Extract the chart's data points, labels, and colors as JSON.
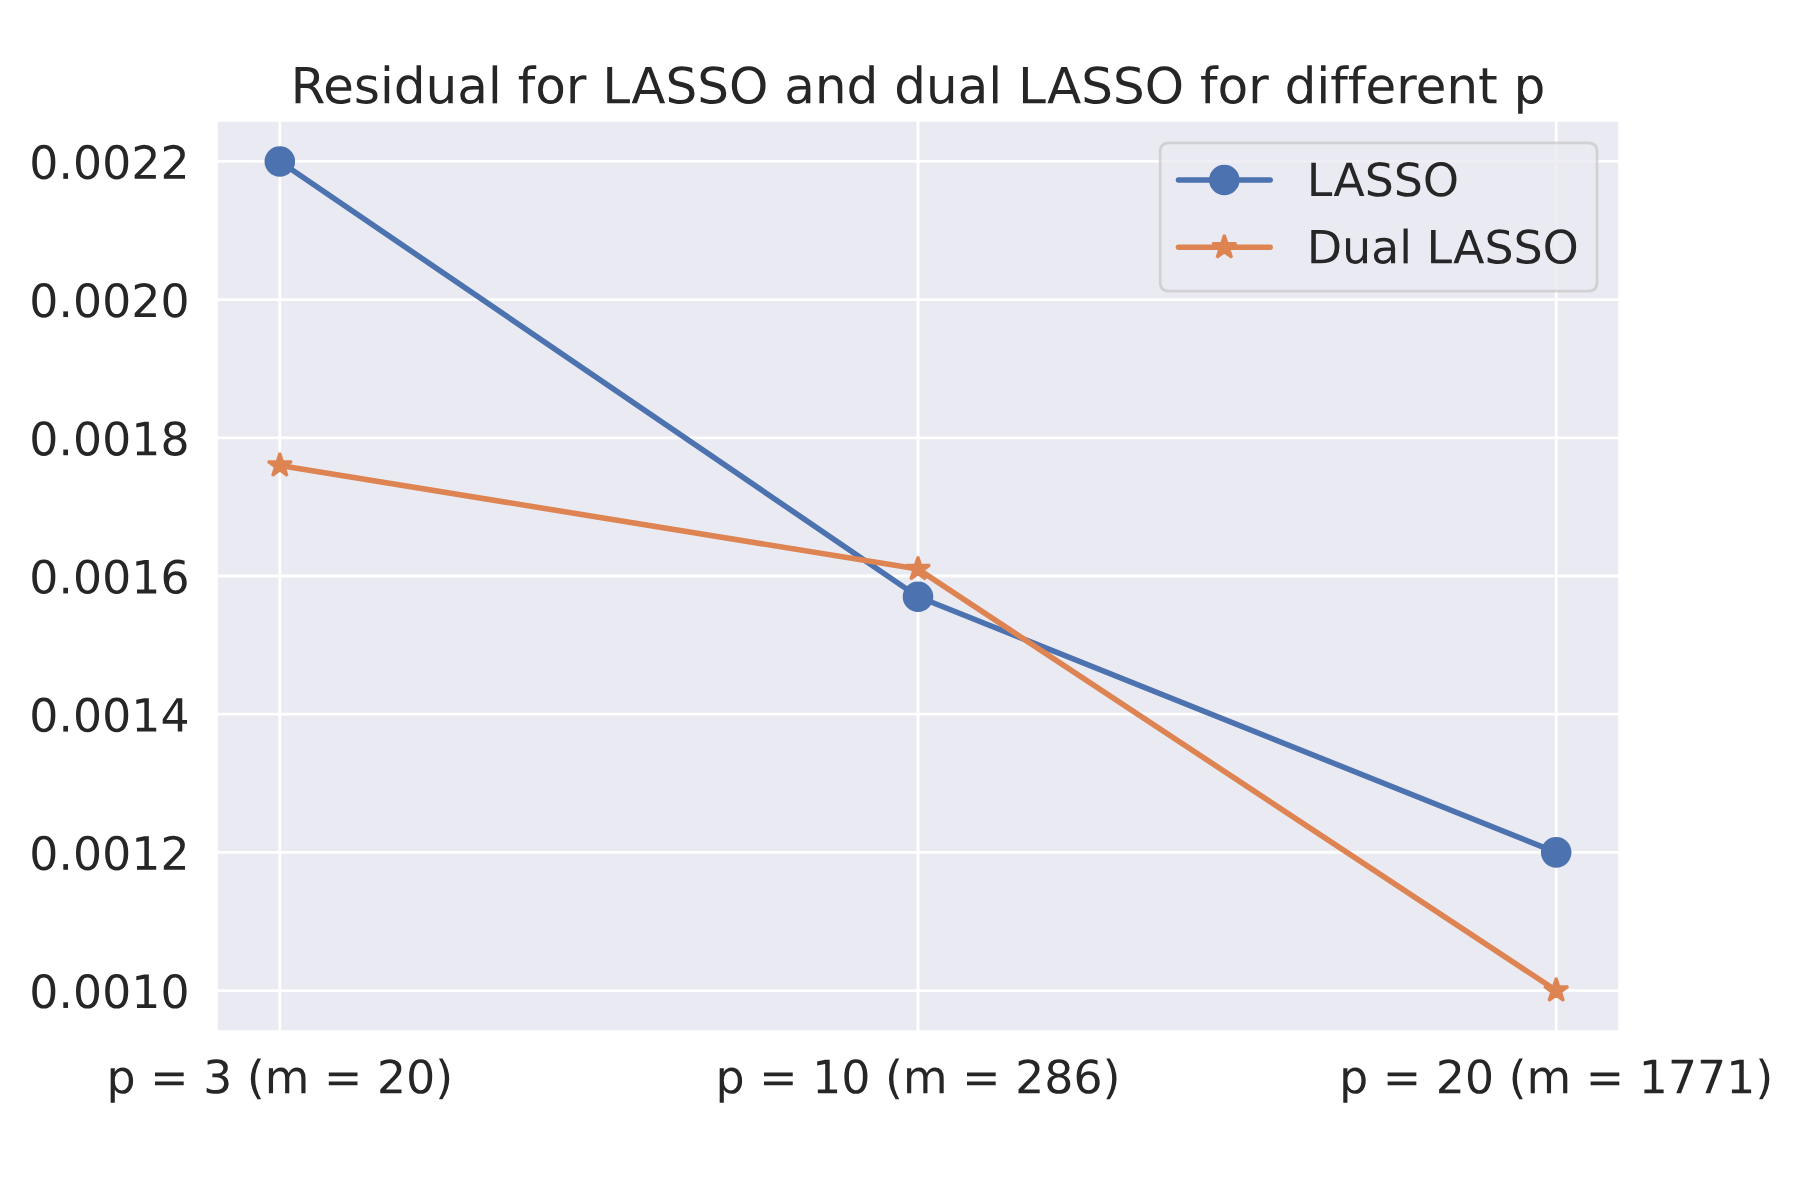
{
  "chart_data": {
    "type": "line",
    "title": "Residual for LASSO and dual LASSO for different p",
    "categories": [
      "p = 3 (m = 20)",
      "p = 10 (m = 286)",
      "p = 20 (m = 1771)"
    ],
    "series": [
      {
        "name": "LASSO",
        "color": "#4c72b0",
        "marker": "circle",
        "values": [
          0.0022,
          0.00157,
          0.0012
        ]
      },
      {
        "name": "Dual LASSO",
        "color": "#dd8452",
        "marker": "star",
        "values": [
          0.00176,
          0.00161,
          0.001
        ]
      }
    ],
    "ylim": [
      0.00094,
      0.00226
    ],
    "yticks": [
      {
        "value": 0.001,
        "label": "0.0010"
      },
      {
        "value": 0.0012,
        "label": "0.0012"
      },
      {
        "value": 0.0014,
        "label": "0.0014"
      },
      {
        "value": 0.0016,
        "label": "0.0016"
      },
      {
        "value": 0.0018,
        "label": "0.0018"
      },
      {
        "value": 0.002,
        "label": "0.0020"
      },
      {
        "value": 0.0022,
        "label": "0.0022"
      }
    ],
    "grid": true,
    "legend": "top right",
    "line_style": "solid"
  }
}
